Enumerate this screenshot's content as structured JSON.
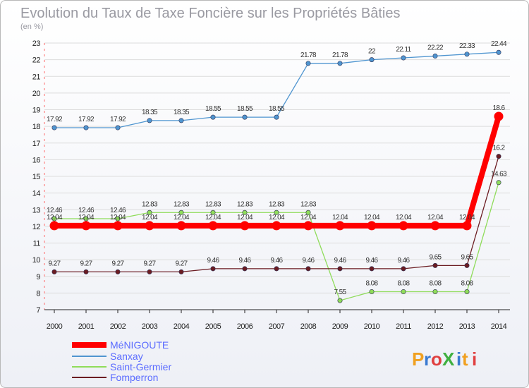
{
  "chart_data": {
    "type": "line",
    "title": "Evolution du Taux de Taxe Foncière sur les Propriétés Bâties",
    "subtitle": "(en %)",
    "xlabel": "",
    "ylabel": "",
    "categories": [
      "2000",
      "2001",
      "2002",
      "2003",
      "2004",
      "2005",
      "2006",
      "2007",
      "2008",
      "2009",
      "2010",
      "2011",
      "2012",
      "2013",
      "2014"
    ],
    "ylim": [
      7,
      23
    ],
    "yticks": [
      "7",
      "8",
      "9",
      "10",
      "11",
      "12",
      "13",
      "14",
      "15",
      "16",
      "17",
      "18",
      "19",
      "20",
      "21",
      "22",
      "23"
    ],
    "grid": "horizontal",
    "legend_position": "bottom-left",
    "series": [
      {
        "name": "MéNIGOUTE",
        "color": "#ff0000",
        "values": [
          12.04,
          12.04,
          12.04,
          12.04,
          12.04,
          12.04,
          12.04,
          12.04,
          12.04,
          12.04,
          12.04,
          12.04,
          12.04,
          12.04,
          18.6
        ],
        "labels": [
          "12.04",
          "12.04",
          "12.04",
          "12.04",
          "12.04",
          "12.04",
          "12.04",
          "12.04",
          "12.04",
          "12.04",
          "12.04",
          "12.04",
          "12.04",
          "12.04",
          "18.6"
        ]
      },
      {
        "name": "Sanxay",
        "color": "#4f95d0",
        "values": [
          17.92,
          17.92,
          17.92,
          18.35,
          18.35,
          18.55,
          18.55,
          18.55,
          21.78,
          21.78,
          22,
          22.11,
          22.22,
          22.33,
          22.44
        ],
        "labels": [
          "17.92",
          "17.92",
          "17.92",
          "18.35",
          "18.35",
          "18.55",
          "18.55",
          "18.55",
          "21.78",
          "21.78",
          "22",
          "22.11",
          "22.22",
          "22.33",
          "22.44"
        ]
      },
      {
        "name": "Saint-Germier",
        "color": "#8fdc5a",
        "values": [
          12.46,
          12.46,
          12.46,
          12.83,
          12.83,
          12.83,
          12.83,
          12.83,
          12.83,
          7.55,
          8.08,
          8.08,
          8.08,
          8.08,
          14.63
        ],
        "labels": [
          "12.46",
          "12.46",
          "12.46",
          "12.83",
          "12.83",
          "12.83",
          "12.83",
          "12.83",
          "12.83",
          "7.55",
          "8.08",
          "8.08",
          "8.08",
          "8.08",
          "14.63"
        ]
      },
      {
        "name": "Fomperron",
        "color": "#6b1c22",
        "values": [
          9.27,
          9.27,
          9.27,
          9.27,
          9.27,
          9.46,
          9.46,
          9.46,
          9.46,
          9.46,
          9.46,
          9.46,
          9.65,
          9.65,
          16.2
        ],
        "labels": [
          "9.27",
          "9.27",
          "9.27",
          "9.27",
          "9.27",
          "9.46",
          "9.46",
          "9.46",
          "9.46",
          "9.46",
          "9.46",
          "9.46",
          "9.65",
          "9.65",
          "16.2"
        ]
      }
    ]
  },
  "logo": {
    "text": "ProXiti"
  }
}
